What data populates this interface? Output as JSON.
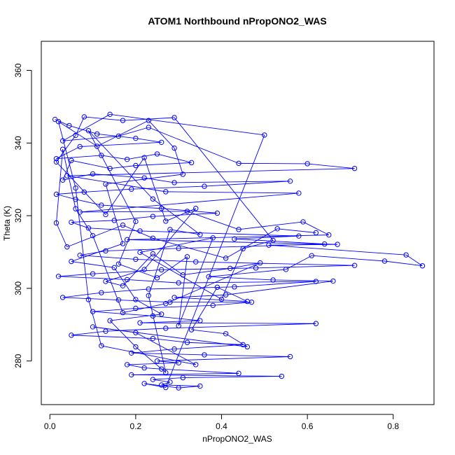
{
  "chart_data": {
    "type": "line",
    "title": "ATOM1 Northbound nPropONO2_WAS",
    "xlabel": "nPropONO2_WAS",
    "ylabel": "Theta (K)",
    "xlim": [
      -0.02,
      0.895
    ],
    "ylim": [
      268,
      368
    ],
    "xticks": [
      0.0,
      0.2,
      0.4,
      0.6,
      0.8
    ],
    "xtick_labels": [
      "0.0",
      "0.2",
      "0.4",
      "0.6",
      "0.8"
    ],
    "yticks": [
      280,
      300,
      320,
      340,
      360
    ],
    "ytick_labels": [
      "280",
      "300",
      "320",
      "340",
      "360"
    ],
    "series_style": "points connected by lines (type='o')",
    "colors": {
      "series": "#0000ff",
      "frame": "#000000",
      "background": "#ffffff"
    },
    "series": [
      {
        "points": [
          [
            0.012,
            346.5
          ],
          [
            0.045,
            344.8
          ],
          [
            0.11,
            342.5
          ],
          [
            0.2,
            341.3
          ],
          [
            0.26,
            340.2
          ],
          [
            0.07,
            339.0
          ],
          [
            0.015,
            335.7
          ],
          [
            0.12,
            336.6
          ],
          [
            0.18,
            335.5
          ],
          [
            0.25,
            337.0
          ],
          [
            0.33,
            334.6
          ],
          [
            0.2,
            333.8
          ],
          [
            0.14,
            333.0
          ],
          [
            0.05,
            335.2
          ],
          [
            0.03,
            329.8
          ],
          [
            0.1,
            331.5
          ],
          [
            0.22,
            330.4
          ],
          [
            0.29,
            329.1
          ],
          [
            0.56,
            329.5
          ],
          [
            0.36,
            328.1
          ],
          [
            0.19,
            327.3
          ],
          [
            0.08,
            326.5
          ],
          [
            0.015,
            325.9
          ],
          [
            0.06,
            324.5
          ],
          [
            0.12,
            322.9
          ],
          [
            0.26,
            322.0
          ],
          [
            0.39,
            320.7
          ],
          [
            0.24,
            319.8
          ],
          [
            0.15,
            318.7
          ],
          [
            0.05,
            318.2
          ],
          [
            0.09,
            316.6
          ],
          [
            0.21,
            315.8
          ],
          [
            0.58,
            314.4
          ],
          [
            0.43,
            313.6
          ],
          [
            0.64,
            312.2
          ],
          [
            0.3,
            311.0
          ],
          [
            0.13,
            310.3
          ],
          [
            0.07,
            309.1
          ],
          [
            0.2,
            308.0
          ],
          [
            0.34,
            307.3
          ],
          [
            0.71,
            306.3
          ],
          [
            0.48,
            305.6
          ],
          [
            0.26,
            305.1
          ],
          [
            0.1,
            304.0
          ],
          [
            0.02,
            303.3
          ],
          [
            0.18,
            302.4
          ],
          [
            0.3,
            301.5
          ],
          [
            0.62,
            301.9
          ],
          [
            0.43,
            300.4
          ],
          [
            0.23,
            299.8
          ],
          [
            0.12,
            298.8
          ],
          [
            0.03,
            297.5
          ],
          [
            0.16,
            296.8
          ],
          [
            0.28,
            296.2
          ],
          [
            0.47,
            296.2
          ],
          [
            0.38,
            295.3
          ],
          [
            0.2,
            294.5
          ],
          [
            0.1,
            293.6
          ],
          [
            0.24,
            292.4
          ],
          [
            0.35,
            291.1
          ],
          [
            0.21,
            290.5
          ],
          [
            0.62,
            290.3
          ],
          [
            0.27,
            289.0
          ],
          [
            0.13,
            288.2
          ],
          [
            0.05,
            287.1
          ],
          [
            0.24,
            286.2
          ],
          [
            0.32,
            285.1
          ],
          [
            0.45,
            284.5
          ],
          [
            0.29,
            283.3
          ],
          [
            0.19,
            282.2
          ],
          [
            0.36,
            281.7
          ],
          [
            0.56,
            281.2
          ],
          [
            0.25,
            280.0
          ],
          [
            0.3,
            279.5
          ],
          [
            0.18,
            279.0
          ],
          [
            0.22,
            278.1
          ],
          [
            0.26,
            277.8
          ],
          [
            0.44,
            276.6
          ],
          [
            0.19,
            276.2
          ],
          [
            0.54,
            275.8
          ],
          [
            0.31,
            275.4
          ],
          [
            0.24,
            274.9
          ],
          [
            0.28,
            274.2
          ],
          [
            0.26,
            273.4
          ],
          [
            0.35,
            273.1
          ],
          [
            0.3,
            272.6
          ],
          [
            0.22,
            273.8
          ],
          [
            0.27,
            272.7
          ],
          [
            0.5,
            342.2
          ],
          [
            0.14,
            347.9
          ],
          [
            0.03,
            340.6
          ],
          [
            0.16,
            341.9
          ],
          [
            0.23,
            344.3
          ],
          [
            0.44,
            334.4
          ],
          [
            0.6,
            334.3
          ],
          [
            0.71,
            333.0
          ],
          [
            0.04,
            331.0
          ],
          [
            0.27,
            326.6
          ],
          [
            0.58,
            326.2
          ],
          [
            0.07,
            321.0
          ],
          [
            0.32,
            321.2
          ],
          [
            0.44,
            316.2
          ],
          [
            0.59,
            318.3
          ],
          [
            0.65,
            314.7
          ],
          [
            0.18,
            313.4
          ],
          [
            0.67,
            312.1
          ],
          [
            0.51,
            311.9
          ],
          [
            0.83,
            309.2
          ],
          [
            0.868,
            306.2
          ],
          [
            0.78,
            307.5
          ],
          [
            0.61,
            309.0
          ],
          [
            0.55,
            305.2
          ],
          [
            0.37,
            303.2
          ],
          [
            0.52,
            302.3
          ],
          [
            0.66,
            302.0
          ],
          [
            0.41,
            298.2
          ],
          [
            0.29,
            297.5
          ],
          [
            0.46,
            296.4
          ],
          [
            0.39,
            300.3
          ],
          [
            0.33,
            288.6
          ],
          [
            0.41,
            287.5
          ],
          [
            0.46,
            283.9
          ],
          [
            0.1,
            289.4
          ],
          [
            0.2,
            287.8
          ],
          [
            0.34,
            279.0
          ],
          [
            0.12,
            284.2
          ],
          [
            0.09,
            296.9
          ],
          [
            0.06,
            327.6
          ],
          [
            0.02,
            345.9
          ],
          [
            0.11,
            339.1
          ],
          [
            0.23,
            346.2
          ],
          [
            0.29,
            338.6
          ],
          [
            0.31,
            331.4
          ],
          [
            0.13,
            328.7
          ],
          [
            0.17,
            312.3
          ],
          [
            0.05,
            307.4
          ],
          [
            0.15,
            305.7
          ],
          [
            0.2,
            296.9
          ],
          [
            0.26,
            292.9
          ],
          [
            0.14,
            291.1
          ],
          [
            0.2,
            283.9
          ],
          [
            0.27,
            276.8
          ],
          [
            0.23,
            298.0
          ],
          [
            0.28,
            316.2
          ],
          [
            0.35,
            314.8
          ],
          [
            0.24,
            324.6
          ],
          [
            0.09,
            343.4
          ],
          [
            0.2,
            318.4
          ],
          [
            0.16,
            306.7
          ],
          [
            0.25,
            302.9
          ],
          [
            0.32,
            308.7
          ],
          [
            0.3,
            289.7
          ],
          [
            0.38,
            313.9
          ],
          [
            0.21,
            309.9
          ],
          [
            0.4,
            297.0
          ],
          [
            0.45,
            310.9
          ],
          [
            0.52,
            313.2
          ],
          [
            0.29,
            347.0
          ],
          [
            0.17,
            346.2
          ],
          [
            0.08,
            347.2
          ],
          [
            0.06,
            342.1
          ],
          [
            0.015,
            334.8
          ],
          [
            0.13,
            320.3
          ],
          [
            0.22,
            336.0
          ],
          [
            0.27,
            318.5
          ],
          [
            0.34,
            322.0
          ],
          [
            0.22,
            305.2
          ],
          [
            0.13,
            301.9
          ],
          [
            0.17,
            300.7
          ],
          [
            0.24,
            309.5
          ],
          [
            0.31,
            303.7
          ],
          [
            0.42,
            305.5
          ],
          [
            0.49,
            307.0
          ],
          [
            0.27,
            295.8
          ],
          [
            0.17,
            293.3
          ],
          [
            0.1,
            314.5
          ],
          [
            0.06,
            321.9
          ],
          [
            0.03,
            338.3
          ],
          [
            0.015,
            318.0
          ],
          [
            0.04,
            311.4
          ],
          [
            0.17,
            317.4
          ],
          [
            0.24,
            313.8
          ],
          [
            0.41,
            308.3
          ],
          [
            0.53,
            316.4
          ],
          [
            0.62,
            315.3
          ]
        ]
      }
    ]
  }
}
